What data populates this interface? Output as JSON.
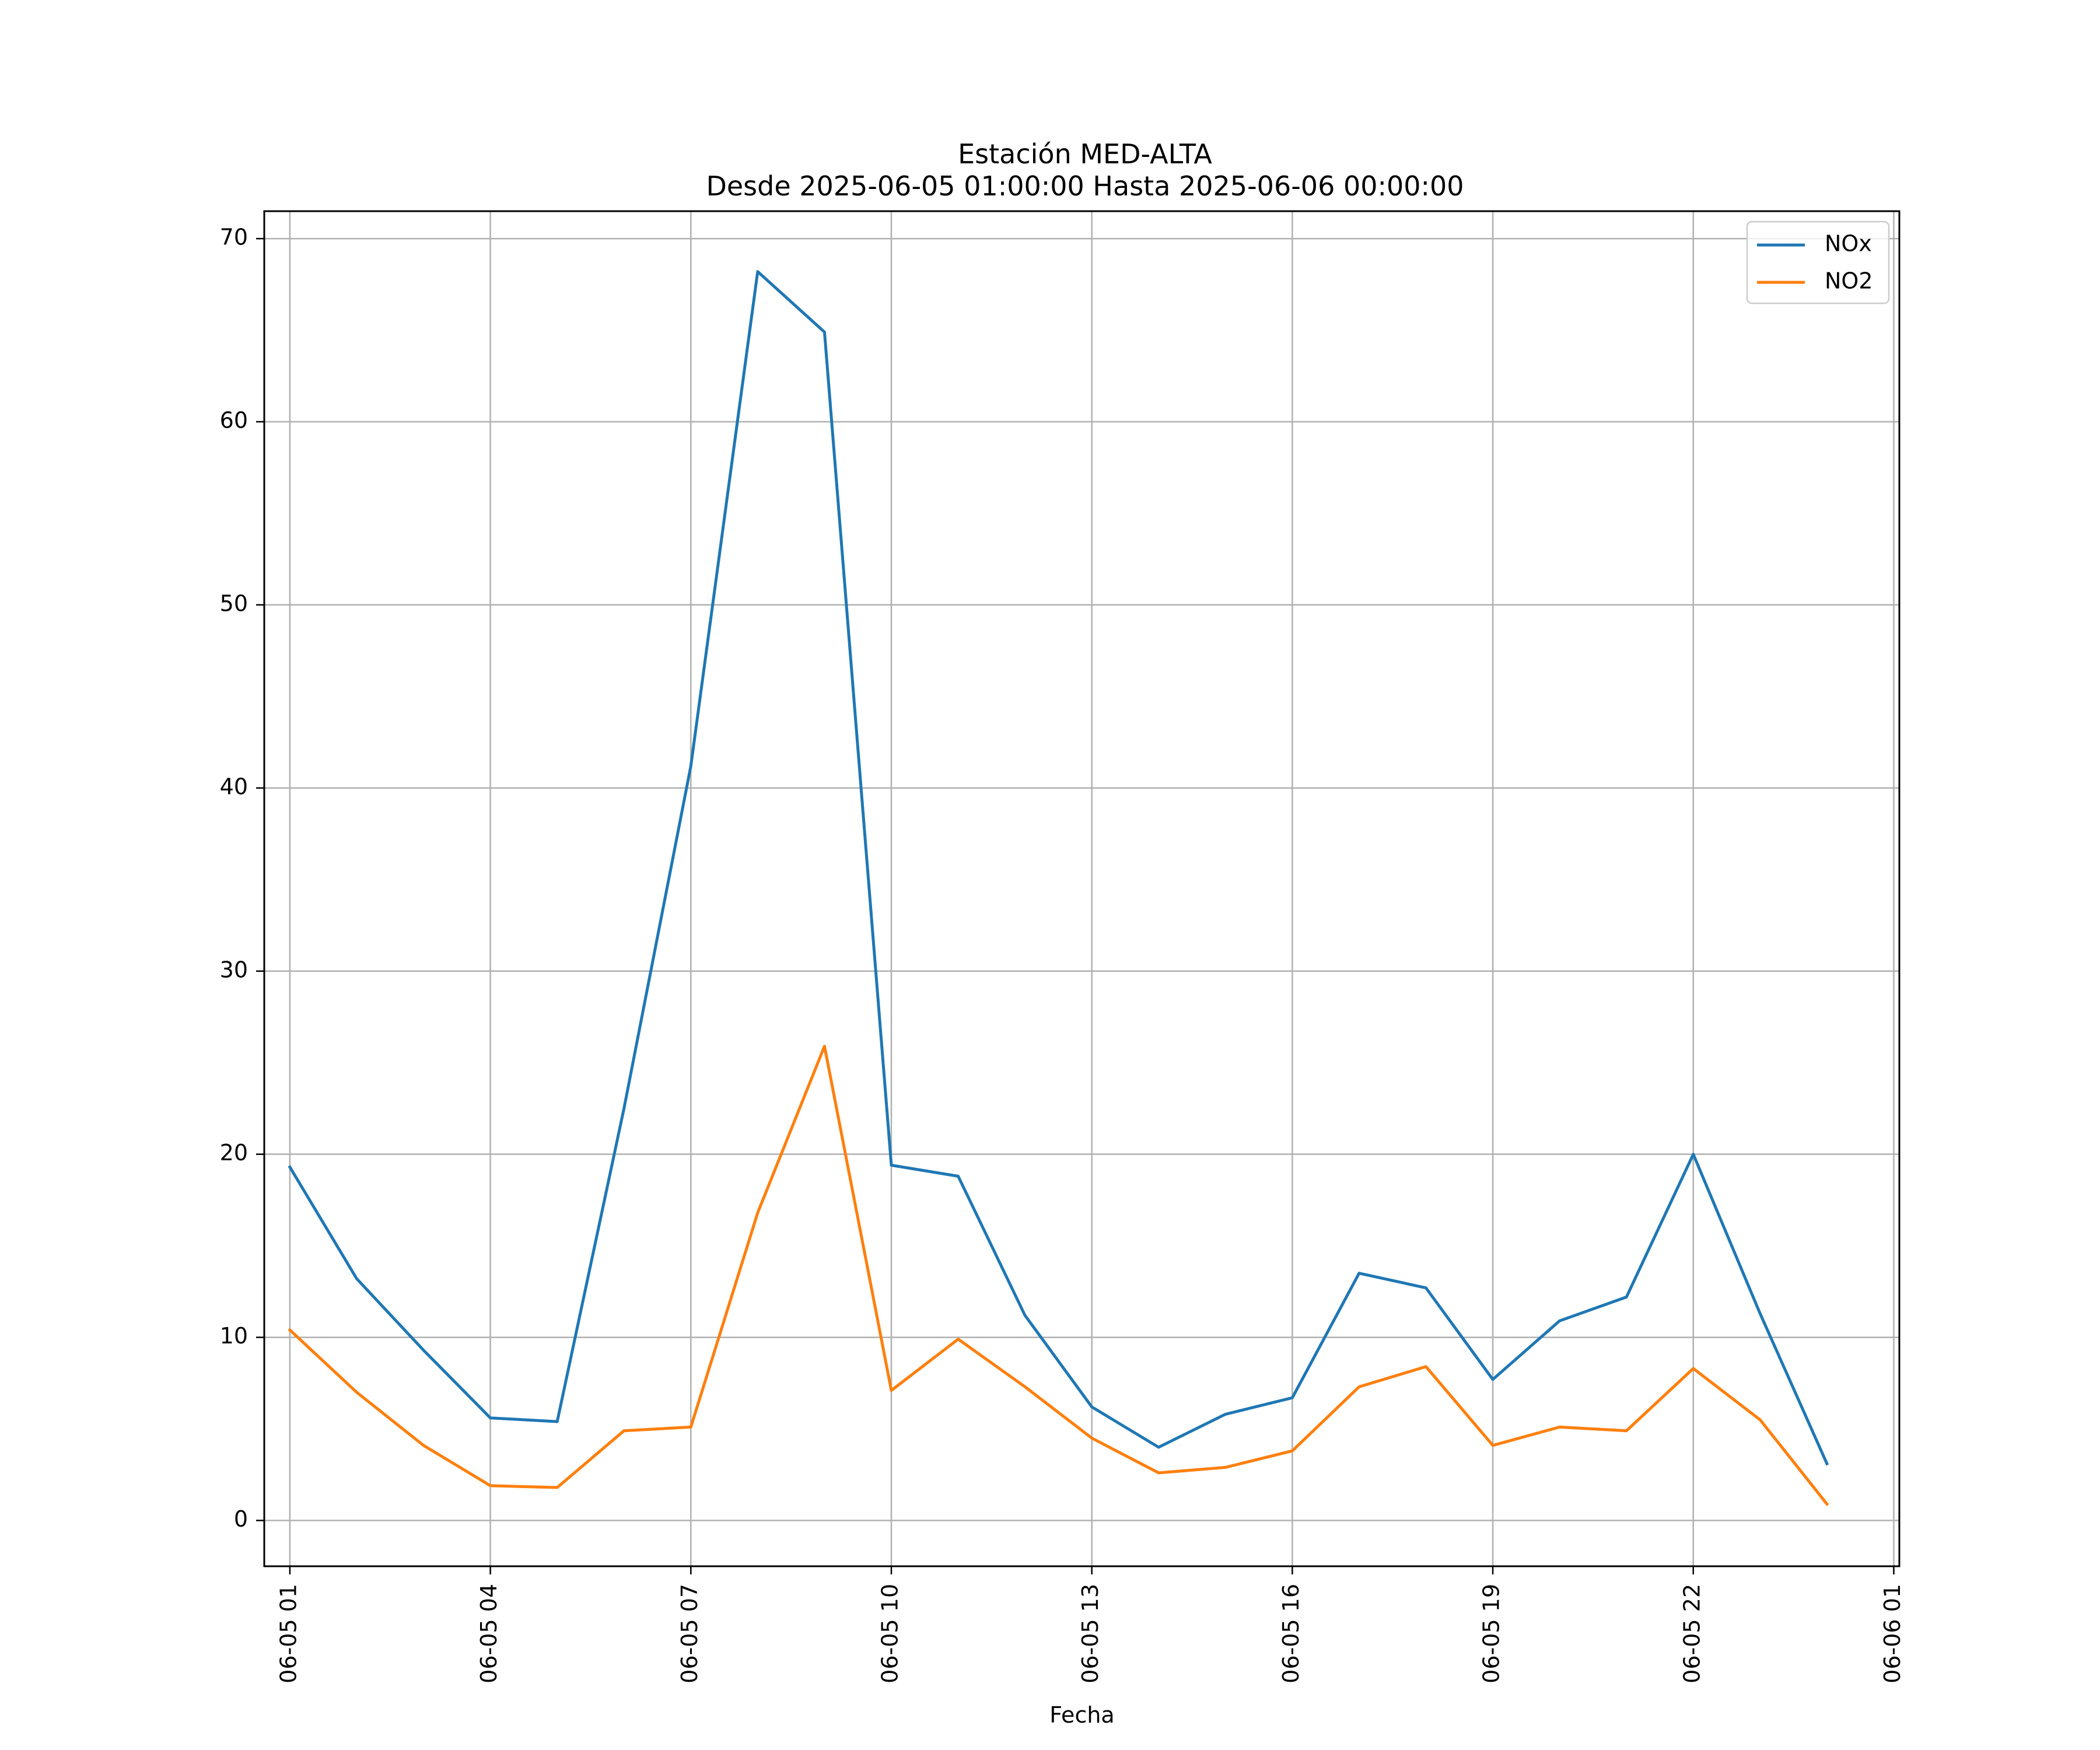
{
  "chart_data": {
    "type": "line",
    "title": "Estación MED-ALTA",
    "subtitle": "Desde 2025-06-05 01:00:00 Hasta 2025-06-06 00:00:00",
    "xlabel": "Fecha",
    "ylabel": "",
    "x": [
      "2025-06-05 01:00",
      "2025-06-05 02:00",
      "2025-06-05 03:00",
      "2025-06-05 04:00",
      "2025-06-05 05:00",
      "2025-06-05 06:00",
      "2025-06-05 07:00",
      "2025-06-05 08:00",
      "2025-06-05 09:00",
      "2025-06-05 10:00",
      "2025-06-05 11:00",
      "2025-06-05 12:00",
      "2025-06-05 13:00",
      "2025-06-05 14:00",
      "2025-06-05 15:00",
      "2025-06-05 16:00",
      "2025-06-05 17:00",
      "2025-06-05 18:00",
      "2025-06-05 19:00",
      "2025-06-05 20:00",
      "2025-06-05 21:00",
      "2025-06-05 22:00",
      "2025-06-05 23:00",
      "2025-06-06 00:00"
    ],
    "series": [
      {
        "name": "NOx",
        "color": "#1f77b4",
        "values": [
          19.3,
          13.2,
          9.3,
          5.6,
          5.4,
          22.5,
          41.2,
          68.2,
          64.9,
          19.4,
          18.8,
          11.2,
          6.2,
          4.0,
          5.8,
          6.7,
          13.5,
          12.7,
          7.7,
          10.9,
          12.2,
          20.0,
          11.3,
          3.1
        ]
      },
      {
        "name": "NO2",
        "color": "#ff7f0e",
        "values": [
          10.4,
          7.0,
          4.1,
          1.9,
          1.8,
          4.9,
          5.1,
          16.8,
          25.9,
          7.1,
          9.9,
          7.3,
          4.5,
          2.6,
          2.9,
          3.8,
          7.3,
          8.4,
          4.1,
          5.1,
          4.9,
          8.3,
          5.5,
          0.9
        ]
      }
    ],
    "xticks": [
      "2025-06-05 01:00",
      "2025-06-05 04:00",
      "2025-06-05 07:00",
      "2025-06-05 10:00",
      "2025-06-05 13:00",
      "2025-06-05 16:00",
      "2025-06-05 19:00",
      "2025-06-05 22:00",
      "2025-06-06 01:00"
    ],
    "xtick_labels": [
      "06-05 01",
      "06-05 04",
      "06-05 07",
      "06-05 10",
      "06-05 13",
      "06-05 16",
      "06-05 19",
      "06-05 22",
      "06-06 01"
    ],
    "xlim": [
      "2025-06-05 00:37",
      "2025-06-06 01:05"
    ],
    "yticks": [
      0,
      10,
      20,
      30,
      40,
      50,
      60,
      70
    ],
    "ylim": [
      -2.5,
      71.5
    ],
    "grid": true,
    "legend": "top-right"
  }
}
